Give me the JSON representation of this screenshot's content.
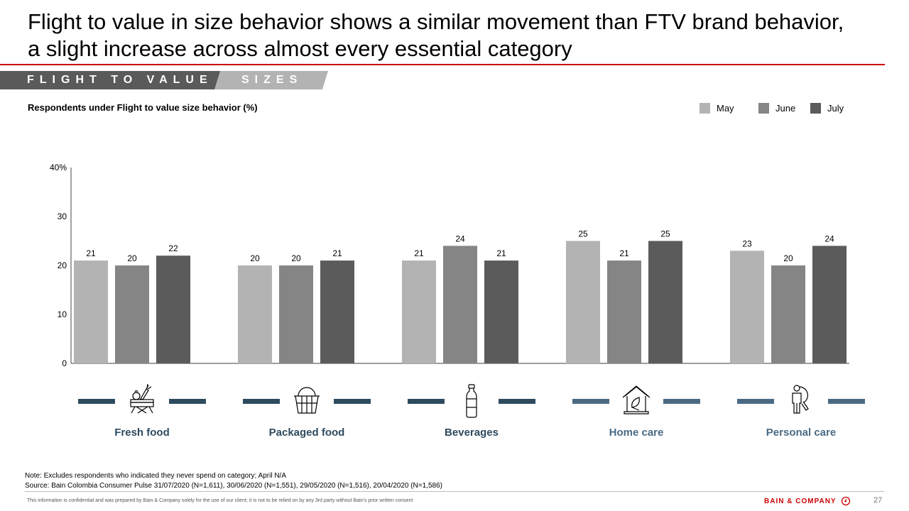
{
  "header": {
    "title_line1": "Flight to value in size behavior shows a similar movement than FTV brand behavior,",
    "title_line2": "a slight increase across almost every essential category",
    "tab_primary": "FLIGHT TO VALUE",
    "tab_secondary": "SIZES"
  },
  "subtitle": "Respondents under Flight to value size behavior (%)",
  "colors": {
    "may": "#b3b3b3",
    "june": "#858585",
    "july": "#5b5b5b",
    "brand_red": "#cc0000",
    "category_dark": "#2e4a5e",
    "category_light": "#4a6a84"
  },
  "chart_data": {
    "type": "bar",
    "title": "Respondents under Flight to value size behavior (%)",
    "xlabel": "",
    "ylabel": "",
    "ylim": [
      0,
      40
    ],
    "yticks": [
      0,
      10,
      20,
      30,
      40
    ],
    "ytick_labels": [
      "0",
      "10",
      "20",
      "30",
      "40%"
    ],
    "grid": false,
    "legend_position": "top-right",
    "categories": [
      "Fresh food",
      "Packaged food",
      "Beverages",
      "Home care",
      "Personal care"
    ],
    "series": [
      {
        "name": "May",
        "values": [
          21,
          20,
          21,
          25,
          23
        ]
      },
      {
        "name": "June",
        "values": [
          20,
          20,
          24,
          21,
          20
        ]
      },
      {
        "name": "July",
        "values": [
          22,
          21,
          21,
          25,
          24
        ]
      }
    ]
  },
  "categories": [
    {
      "label": "Fresh food",
      "icon": "fresh-food-crate-icon"
    },
    {
      "label": "Packaged food",
      "icon": "basket-icon"
    },
    {
      "label": "Beverages",
      "icon": "bottle-icon"
    },
    {
      "label": "Home care",
      "icon": "house-leaf-icon"
    },
    {
      "label": "Personal care",
      "icon": "person-magnifier-icon"
    }
  ],
  "footer": {
    "note": "Note: Excludes respondents who indicated they never spend on category; April N/A",
    "source": "Source: Bain Colombia Consumer Pulse 31/07/2020 (N=1,611), 30/06/2020 (N=1,551), 29/05/2020 (N=1,516), 20/04/2020 (N=1,586)",
    "confidential": "This information is confidential and was prepared by Bain & Company solely for the use of our client; it is not to be relied on by any 3rd party without Bain's prior written consent",
    "brand": "BAIN & COMPANY",
    "page_number": "27"
  }
}
